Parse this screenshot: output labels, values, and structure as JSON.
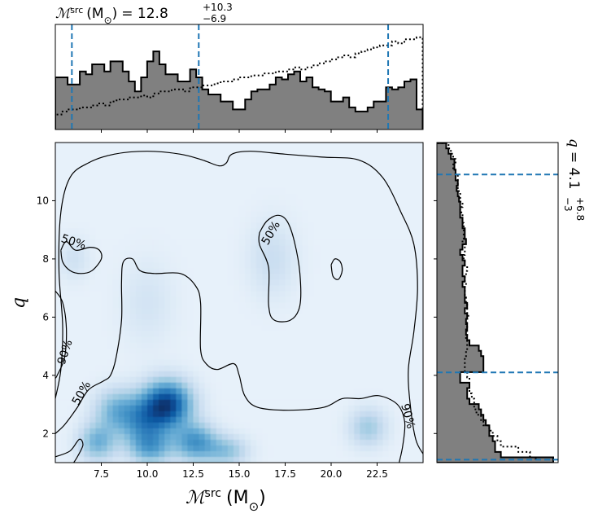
{
  "chart_data": [
    {
      "type": "heatmap",
      "name": "joint-density",
      "xlabel": "ℳ",
      "xlabel_sup": "src",
      "xlabel_unit": "(M",
      "xlabel_unit_sub": "⊙",
      "xlabel_unit_close": ")",
      "ylabel": "q",
      "xlim": [
        5.0,
        25.0
      ],
      "ylim": [
        1.0,
        12.0
      ],
      "xticks": [
        7.5,
        10.0,
        12.5,
        15.0,
        17.5,
        20.0,
        22.5
      ],
      "xtick_labels": [
        "7.5",
        "10.0",
        "12.5",
        "15.0",
        "17.5",
        "20.0",
        "22.5"
      ],
      "yticks": [
        2,
        4,
        6,
        8,
        10
      ],
      "ytick_labels": [
        "2",
        "4",
        "6",
        "8",
        "10"
      ],
      "density_peaks": [
        {
          "x": 11.1,
          "y": 3.0,
          "weight": 1.0,
          "sx": 0.9,
          "sy": 0.55
        },
        {
          "x": 9.8,
          "y": 2.4,
          "weight": 0.55,
          "sx": 0.9,
          "sy": 0.6
        },
        {
          "x": 8.3,
          "y": 2.8,
          "weight": 0.4,
          "sx": 0.8,
          "sy": 0.5
        },
        {
          "x": 7.3,
          "y": 1.7,
          "weight": 0.45,
          "sx": 0.7,
          "sy": 0.45
        },
        {
          "x": 12.6,
          "y": 1.7,
          "weight": 0.6,
          "sx": 0.8,
          "sy": 0.45
        },
        {
          "x": 14.3,
          "y": 1.4,
          "weight": 0.35,
          "sx": 0.8,
          "sy": 0.35
        },
        {
          "x": 10.2,
          "y": 1.5,
          "weight": 0.45,
          "sx": 0.8,
          "sy": 0.4
        },
        {
          "x": 22.0,
          "y": 2.2,
          "weight": 0.3,
          "sx": 0.7,
          "sy": 0.45
        },
        {
          "x": 16.8,
          "y": 8.0,
          "weight": 0.15,
          "sx": 0.9,
          "sy": 0.9
        },
        {
          "x": 6.0,
          "y": 8.0,
          "weight": 0.12,
          "sx": 0.6,
          "sy": 0.5
        },
        {
          "x": 10.0,
          "y": 6.5,
          "weight": 0.1,
          "sx": 1.0,
          "sy": 1.0
        }
      ],
      "contours": [
        {
          "label": "90%",
          "points": [
            [
              5.0,
              6.9
            ],
            [
              5.4,
              6.5
            ],
            [
              5.6,
              5.6
            ],
            [
              5.5,
              4.6
            ],
            [
              5.1,
              4.0
            ],
            [
              5.0,
              3.9
            ]
          ]
        },
        {
          "label": "90%",
          "points": [
            [
              5.0,
              3.2
            ],
            [
              5.3,
              4.2
            ],
            [
              5.4,
              5.7
            ],
            [
              5.2,
              7.6
            ],
            [
              5.3,
              9.6
            ],
            [
              5.8,
              10.8
            ],
            [
              6.8,
              11.3
            ],
            [
              8.2,
              11.6
            ],
            [
              10.0,
              11.7
            ],
            [
              11.8,
              11.6
            ],
            [
              13.0,
              11.4
            ],
            [
              13.9,
              11.2
            ],
            [
              14.3,
              11.3
            ],
            [
              14.6,
              11.6
            ],
            [
              15.6,
              11.7
            ],
            [
              17.5,
              11.6
            ],
            [
              19.5,
              11.5
            ],
            [
              21.5,
              11.4
            ],
            [
              22.8,
              10.8
            ],
            [
              23.8,
              9.6
            ],
            [
              24.5,
              8.5
            ],
            [
              24.7,
              7.0
            ],
            [
              24.5,
              5.5
            ],
            [
              24.2,
              4.2
            ],
            [
              24.3,
              3.0
            ],
            [
              24.6,
              1.8
            ],
            [
              25.0,
              1.3
            ]
          ]
        },
        {
          "label": "90%",
          "points": [
            [
              5.0,
              1.2
            ],
            [
              5.8,
              1.4
            ],
            [
              6.3,
              1.8
            ],
            [
              6.5,
              1.6
            ],
            [
              6.2,
              1.2
            ],
            [
              6.0,
              1.0
            ]
          ]
        },
        {
          "label": "50%",
          "points": [
            [
              5.3,
              8.3
            ],
            [
              5.4,
              7.9
            ],
            [
              5.8,
              7.6
            ],
            [
              6.4,
              7.5
            ],
            [
              7.0,
              7.6
            ],
            [
              7.5,
              8.0
            ],
            [
              7.4,
              8.3
            ],
            [
              6.9,
              8.4
            ],
            [
              6.1,
              8.3
            ],
            [
              5.6,
              8.6
            ],
            [
              5.3,
              8.3
            ]
          ]
        },
        {
          "label": "50%",
          "points": [
            [
              16.1,
              8.9
            ],
            [
              16.5,
              9.3
            ],
            [
              17.1,
              9.5
            ],
            [
              17.6,
              9.3
            ],
            [
              18.0,
              8.6
            ],
            [
              18.3,
              7.5
            ],
            [
              18.3,
              6.4
            ],
            [
              17.8,
              5.9
            ],
            [
              16.9,
              5.9
            ],
            [
              16.6,
              6.4
            ],
            [
              16.6,
              7.7
            ],
            [
              16.1,
              8.5
            ],
            [
              16.1,
              8.9
            ]
          ]
        },
        {
          "label": "50%",
          "points": [
            [
              20.0,
              7.8
            ],
            [
              20.2,
              8.0
            ],
            [
              20.5,
              7.9
            ],
            [
              20.6,
              7.6
            ],
            [
              20.4,
              7.3
            ],
            [
              20.1,
              7.4
            ],
            [
              20.0,
              7.8
            ]
          ]
        },
        {
          "label": "50%",
          "points": [
            [
              5.0,
              2.0
            ],
            [
              5.5,
              2.3
            ],
            [
              6.2,
              2.9
            ],
            [
              6.8,
              3.5
            ],
            [
              7.6,
              3.8
            ],
            [
              8.0,
              4.0
            ],
            [
              8.3,
              4.6
            ],
            [
              8.6,
              5.9
            ],
            [
              8.6,
              7.2
            ],
            [
              8.7,
              7.9
            ],
            [
              9.2,
              8.0
            ],
            [
              9.6,
              7.6
            ],
            [
              10.4,
              7.5
            ],
            [
              11.8,
              7.5
            ],
            [
              12.6,
              7.1
            ],
            [
              12.9,
              6.5
            ],
            [
              12.9,
              4.9
            ],
            [
              13.2,
              4.4
            ],
            [
              13.8,
              4.2
            ],
            [
              14.7,
              4.4
            ],
            [
              15.0,
              4.0
            ],
            [
              15.3,
              3.3
            ],
            [
              16.0,
              2.9
            ],
            [
              17.7,
              2.8
            ],
            [
              19.6,
              2.9
            ],
            [
              20.6,
              3.2
            ],
            [
              21.6,
              3.2
            ],
            [
              22.6,
              3.3
            ],
            [
              23.6,
              3.0
            ],
            [
              24.0,
              2.4
            ],
            [
              23.9,
              1.6
            ],
            [
              23.7,
              1.0
            ]
          ]
        }
      ],
      "contour_labels": [
        {
          "text": "50%",
          "x": 6.0,
          "y": 8.6,
          "angle": 18
        },
        {
          "text": "50%",
          "x": 16.7,
          "y": 8.9,
          "angle": -60
        },
        {
          "text": "90%",
          "x": 5.5,
          "y": 4.8,
          "angle": -72
        },
        {
          "text": "50%",
          "x": 6.4,
          "y": 3.4,
          "angle": -60
        },
        {
          "text": "90%",
          "x": 24.2,
          "y": 2.6,
          "angle": 75
        }
      ]
    },
    {
      "type": "histogram",
      "name": "chirp-mass-marginal",
      "title_main": "ℳ",
      "title_sup": "src",
      "title_unit": "(M",
      "title_unit_sub": "⊙",
      "title_unit_close": ")",
      "title_eq": "= 12.8",
      "title_plus": "+10.3",
      "title_minus": "−6.9",
      "xlim": [
        5.0,
        25.0
      ],
      "bin_edges_start": 5.0,
      "bin_width": 0.333,
      "posterior": [
        0.52,
        0.52,
        0.45,
        0.45,
        0.58,
        0.55,
        0.65,
        0.65,
        0.58,
        0.68,
        0.68,
        0.58,
        0.48,
        0.38,
        0.52,
        0.68,
        0.78,
        0.65,
        0.55,
        0.55,
        0.48,
        0.48,
        0.6,
        0.52,
        0.4,
        0.35,
        0.35,
        0.28,
        0.28,
        0.2,
        0.2,
        0.3,
        0.38,
        0.4,
        0.4,
        0.45,
        0.52,
        0.5,
        0.55,
        0.58,
        0.48,
        0.52,
        0.42,
        0.4,
        0.38,
        0.28,
        0.28,
        0.32,
        0.22,
        0.18,
        0.18,
        0.22,
        0.28,
        0.28,
        0.42,
        0.4,
        0.42,
        0.48,
        0.5,
        0.2
      ],
      "prior": [
        0.15,
        0.18,
        0.2,
        0.2,
        0.22,
        0.22,
        0.24,
        0.26,
        0.24,
        0.28,
        0.3,
        0.3,
        0.32,
        0.32,
        0.34,
        0.32,
        0.36,
        0.38,
        0.38,
        0.4,
        0.4,
        0.38,
        0.42,
        0.42,
        0.44,
        0.44,
        0.46,
        0.48,
        0.48,
        0.5,
        0.52,
        0.52,
        0.54,
        0.54,
        0.56,
        0.56,
        0.58,
        0.58,
        0.6,
        0.62,
        0.6,
        0.62,
        0.64,
        0.66,
        0.68,
        0.7,
        0.72,
        0.74,
        0.72,
        0.76,
        0.78,
        0.8,
        0.82,
        0.84,
        0.84,
        0.88,
        0.86,
        0.9,
        0.9,
        0.92
      ],
      "quantile_lines": [
        5.9,
        12.8,
        23.1
      ],
      "ymax": 1.0
    },
    {
      "type": "histogram",
      "name": "mass-ratio-marginal",
      "orientation": "horizontal",
      "title_main": "q",
      "title_eq": "= 4.1",
      "title_plus": "+6.8",
      "title_minus": "−3",
      "ylim": [
        1.0,
        12.0
      ],
      "bin_edges_start": 1.0,
      "bin_width": 0.183,
      "posterior": [
        1.0,
        0.55,
        0.5,
        0.5,
        0.48,
        0.45,
        0.45,
        0.42,
        0.4,
        0.38,
        0.36,
        0.28,
        0.26,
        0.26,
        0.28,
        0.2,
        0.2,
        0.4,
        0.4,
        0.4,
        0.38,
        0.36,
        0.28,
        0.26,
        0.25,
        0.26,
        0.25,
        0.26,
        0.24,
        0.26,
        0.24,
        0.24,
        0.24,
        0.22,
        0.24,
        0.22,
        0.22,
        0.24,
        0.22,
        0.2,
        0.22,
        0.25,
        0.24,
        0.24,
        0.22,
        0.22,
        0.2,
        0.2,
        0.2,
        0.19,
        0.18,
        0.17,
        0.18,
        0.16,
        0.16,
        0.15,
        0.15,
        0.12,
        0.1,
        0.08
      ],
      "prior": [
        0.85,
        0.8,
        0.7,
        0.55,
        0.52,
        0.48,
        0.45,
        0.4,
        0.38,
        0.34,
        0.32,
        0.32,
        0.3,
        0.28,
        0.28,
        0.28,
        0.26,
        0.24,
        0.24,
        0.24,
        0.25,
        0.26,
        0.26,
        0.25,
        0.26,
        0.26,
        0.26,
        0.27,
        0.26,
        0.26,
        0.25,
        0.24,
        0.24,
        0.25,
        0.24,
        0.25,
        0.26,
        0.24,
        0.23,
        0.24,
        0.24,
        0.22,
        0.23,
        0.23,
        0.23,
        0.22,
        0.22,
        0.2,
        0.22,
        0.2,
        0.2,
        0.18,
        0.18,
        0.18,
        0.16,
        0.14,
        0.16,
        0.14,
        0.12,
        0.1
      ],
      "quantile_lines": [
        1.1,
        4.1,
        10.9
      ],
      "xmax": 1.0
    }
  ],
  "colors": {
    "hist_fill": "#808080",
    "hist_edge": "#000000",
    "quantile": "#1f77b4",
    "density_low": "#f7fbff",
    "density_high": "#08306b",
    "contour": "#000000"
  }
}
